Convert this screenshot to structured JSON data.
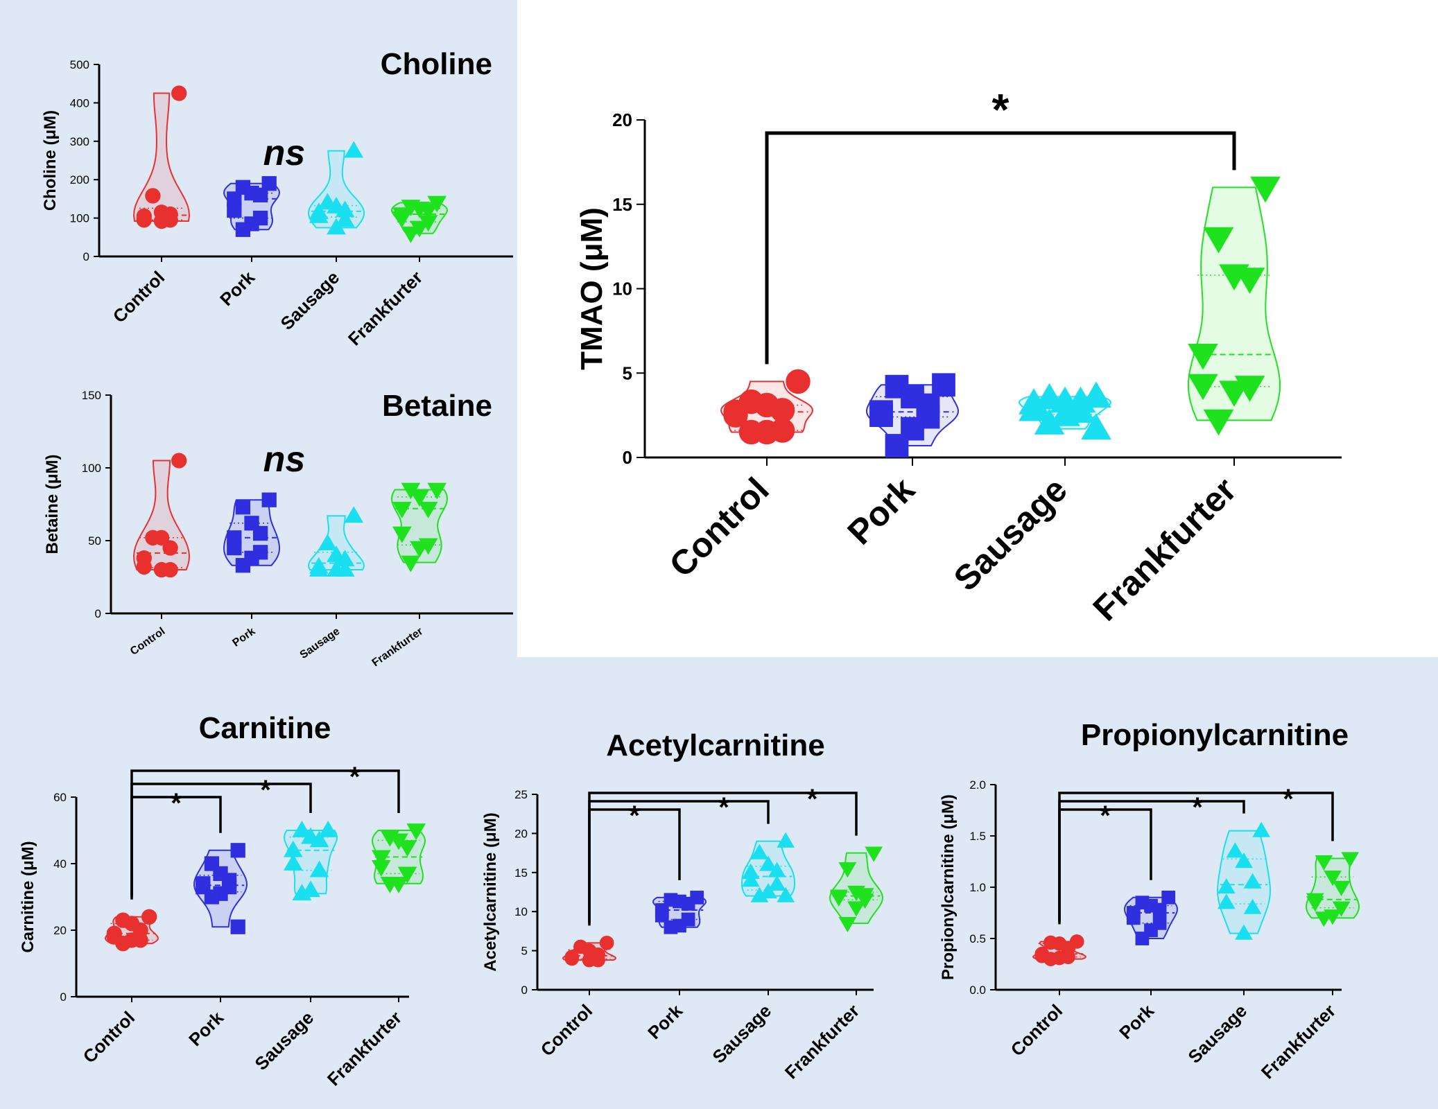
{
  "colors": {
    "Control": "#e8302f",
    "Pork": "#2f2fe0",
    "Sausage": "#19dff0",
    "Frankfurter": "#1fe21f",
    "panel_bg": "#dfe9f5"
  },
  "chart_data": [
    {
      "id": "choline",
      "type": "violin",
      "title": "Choline",
      "ylabel": "Choline (μM)",
      "ylim": [
        0,
        500
      ],
      "yticks": [
        "0",
        "100",
        "200",
        "300",
        "400",
        "500"
      ],
      "categories": [
        "Control",
        "Pork",
        "Sausage",
        "Frankfurter"
      ],
      "annotation": "ns",
      "series": [
        {
          "name": "Control",
          "marker": "circle",
          "values": [
            425,
            158,
            115,
            110,
            105,
            95,
            95,
            92
          ]
        },
        {
          "name": "Pork",
          "marker": "square",
          "values": [
            190,
            180,
            165,
            160,
            150,
            120,
            100,
            85,
            70
          ]
        },
        {
          "name": "Sausage",
          "marker": "triangle-up",
          "values": [
            275,
            140,
            130,
            120,
            115,
            105,
            95,
            75
          ]
        },
        {
          "name": "Frankfurter",
          "marker": "triangle-down",
          "values": [
            140,
            130,
            125,
            120,
            110,
            100,
            90,
            75,
            60
          ]
        }
      ]
    },
    {
      "id": "betaine",
      "type": "violin",
      "title": "Betaine",
      "ylabel": "Betaine (μM)",
      "ylim": [
        0,
        150
      ],
      "yticks": [
        "0",
        "50",
        "100",
        "150"
      ],
      "categories": [
        "Control",
        "Pork",
        "Sausage",
        "Frankfurter"
      ],
      "annotation": "ns",
      "series": [
        {
          "name": "Control",
          "marker": "circle",
          "values": [
            105,
            52,
            52,
            45,
            38,
            32,
            30,
            30
          ]
        },
        {
          "name": "Pork",
          "marker": "square",
          "values": [
            78,
            73,
            62,
            55,
            52,
            45,
            42,
            38,
            33
          ]
        },
        {
          "name": "Sausage",
          "marker": "triangle-up",
          "values": [
            67,
            48,
            40,
            37,
            32,
            30,
            30,
            30
          ]
        },
        {
          "name": "Frankfurter",
          "marker": "triangle-down",
          "values": [
            85,
            85,
            80,
            72,
            72,
            55,
            47,
            45,
            35
          ]
        }
      ]
    },
    {
      "id": "tmao",
      "type": "violin",
      "title": "",
      "ylabel": "TMAO (μM)",
      "ylim": [
        0,
        20
      ],
      "yticks": [
        "0",
        "5",
        "10",
        "15",
        "20"
      ],
      "categories": [
        "Control",
        "Pork",
        "Sausage",
        "Frankfurter"
      ],
      "significance": [
        {
          "from": "Control",
          "to": "Frankfurter",
          "label": "*"
        }
      ],
      "series": [
        {
          "name": "Control",
          "marker": "circle",
          "values": [
            4.5,
            3.3,
            3.1,
            2.8,
            2.7,
            2.5,
            1.6,
            1.5,
            1.5
          ]
        },
        {
          "name": "Pork",
          "marker": "square",
          "values": [
            4.3,
            4.2,
            3.6,
            3.1,
            2.7,
            2.5,
            2.4,
            1.7,
            0.7
          ]
        },
        {
          "name": "Sausage",
          "marker": "triangle-up",
          "values": [
            3.6,
            3.5,
            3.3,
            3.3,
            3.2,
            2.8,
            2.7,
            2.5,
            2.0,
            1.7
          ]
        },
        {
          "name": "Frankfurter",
          "marker": "triangle-down",
          "values": [
            16.0,
            13.0,
            10.8,
            10.6,
            6.1,
            4.3,
            4.2,
            3.9,
            2.2
          ]
        }
      ]
    },
    {
      "id": "carnitine",
      "type": "violin",
      "title": "Carnitine",
      "ylabel": "Carnitine (μM)",
      "ylim": [
        0,
        60
      ],
      "yticks": [
        "0",
        "20",
        "40",
        "60"
      ],
      "categories": [
        "Control",
        "Pork",
        "Sausage",
        "Frankfurter"
      ],
      "significance": [
        {
          "from": "Control",
          "to": "Pork",
          "label": "*"
        },
        {
          "from": "Control",
          "to": "Sausage",
          "label": "*"
        },
        {
          "from": "Control",
          "to": "Frankfurter",
          "label": "*"
        }
      ],
      "series": [
        {
          "name": "Control",
          "marker": "circle",
          "values": [
            24,
            23,
            22,
            20,
            19,
            18,
            17,
            17,
            16
          ]
        },
        {
          "name": "Pork",
          "marker": "square",
          "values": [
            44,
            40,
            37,
            35,
            34,
            33,
            33,
            31,
            30,
            21
          ]
        },
        {
          "name": "Sausage",
          "marker": "triangle-up",
          "values": [
            50,
            50,
            48,
            47,
            44,
            40,
            38,
            32,
            31
          ]
        },
        {
          "name": "Frankfurter",
          "marker": "triangle-down",
          "values": [
            50,
            48,
            47,
            45,
            42,
            39,
            37,
            34,
            34
          ]
        }
      ]
    },
    {
      "id": "acetylcarnitine",
      "type": "violin",
      "title": "Acetylcarnitine",
      "ylabel": "Acetylcarnitine (μM)",
      "ylim": [
        0,
        25
      ],
      "yticks": [
        "0",
        "5",
        "10",
        "15",
        "20",
        "25"
      ],
      "categories": [
        "Control",
        "Pork",
        "Sausage",
        "Frankfurter"
      ],
      "significance": [
        {
          "from": "Control",
          "to": "Pork",
          "label": "*"
        },
        {
          "from": "Control",
          "to": "Sausage",
          "label": "*"
        },
        {
          "from": "Control",
          "to": "Frankfurter",
          "label": "*"
        }
      ],
      "series": [
        {
          "name": "Control",
          "marker": "circle",
          "values": [
            6.0,
            5.5,
            5.0,
            4.5,
            4.2,
            4.0,
            3.8,
            3.8
          ]
        },
        {
          "name": "Pork",
          "marker": "square",
          "values": [
            11.8,
            11.5,
            11.3,
            11.0,
            10.2,
            9.5,
            9.0,
            8.2,
            8.0
          ]
        },
        {
          "name": "Sausage",
          "marker": "triangle-up",
          "values": [
            19.0,
            17.5,
            16.0,
            15.2,
            15.0,
            14.0,
            13.5,
            12.5,
            12.0,
            12.0
          ]
        },
        {
          "name": "Frankfurter",
          "marker": "triangle-down",
          "values": [
            17.5,
            15.5,
            12.5,
            12.2,
            12.0,
            11.8,
            11.5,
            10.5,
            8.5
          ]
        }
      ]
    },
    {
      "id": "propionylcarnitine",
      "type": "violin",
      "title": "Propionylcarnitine",
      "ylabel": "Propionylcarnitine (μM)",
      "ylim": [
        0,
        2.0
      ],
      "yticks": [
        "0.0",
        "0.5",
        "1.0",
        "1.5",
        "2.0"
      ],
      "categories": [
        "Control",
        "Pork",
        "Sausage",
        "Frankfurter"
      ],
      "significance": [
        {
          "from": "Control",
          "to": "Pork",
          "label": "*"
        },
        {
          "from": "Control",
          "to": "Sausage",
          "label": "*"
        },
        {
          "from": "Control",
          "to": "Frankfurter",
          "label": "*"
        }
      ],
      "series": [
        {
          "name": "Control",
          "marker": "circle",
          "values": [
            0.47,
            0.46,
            0.45,
            0.4,
            0.35,
            0.33,
            0.32,
            0.31,
            0.3
          ]
        },
        {
          "name": "Pork",
          "marker": "square",
          "values": [
            0.9,
            0.85,
            0.82,
            0.78,
            0.75,
            0.7,
            0.65,
            0.58,
            0.5
          ]
        },
        {
          "name": "Sausage",
          "marker": "triangle-up",
          "values": [
            1.55,
            1.35,
            1.25,
            1.05,
            1.0,
            0.85,
            0.8,
            0.55
          ]
        },
        {
          "name": "Frankfurter",
          "marker": "triangle-down",
          "values": [
            1.28,
            1.25,
            1.1,
            1.0,
            0.88,
            0.85,
            0.8,
            0.72,
            0.7
          ]
        }
      ]
    }
  ]
}
